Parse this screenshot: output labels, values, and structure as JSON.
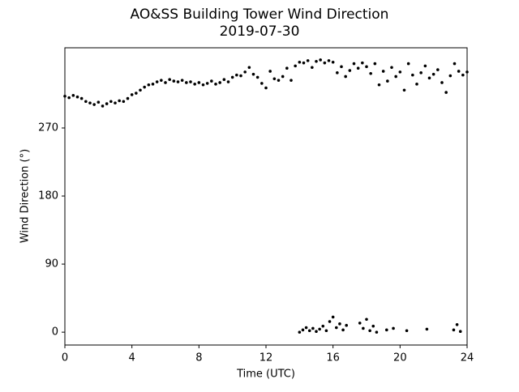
{
  "chart_data": {
    "type": "scatter",
    "title": "AO&SS Building Tower Wind Direction",
    "subtitle": "2019-07-30",
    "xlabel": "Time (UTC)",
    "ylabel": "Wind Direction (°)",
    "color": "#000000",
    "xlim": [
      0,
      24
    ],
    "xticks": [
      0,
      4,
      8,
      12,
      16,
      20,
      24
    ],
    "ylim": [
      -17,
      376
    ],
    "yticks": [
      0,
      90,
      180,
      270
    ],
    "grid": false,
    "x": [
      0,
      0.25,
      0.5,
      0.75,
      1,
      1.25,
      1.5,
      1.75,
      2,
      2.25,
      2.5,
      2.75,
      3,
      3.25,
      3.5,
      3.75,
      4,
      4.25,
      4.5,
      4.75,
      5,
      5.25,
      5.5,
      5.75,
      6,
      6.25,
      6.5,
      6.75,
      7,
      7.25,
      7.5,
      7.75,
      8,
      8.25,
      8.5,
      8.75,
      9,
      9.25,
      9.5,
      9.75,
      10,
      10.25,
      10.5,
      10.75,
      11,
      11.25,
      11.5,
      11.75,
      12,
      12.25,
      12.5,
      12.75,
      13,
      13.25,
      13.5,
      13.75,
      14,
      14.25,
      14.5,
      14.75,
      15,
      15.25,
      15.5,
      15.75,
      16,
      16.25,
      16.5,
      16.75,
      17,
      17.25,
      17.5,
      17.75,
      18,
      18.25,
      18.5,
      18.75,
      19,
      19.25,
      19.5,
      19.75,
      20,
      20.25,
      20.5,
      20.75,
      21,
      21.25,
      21.5,
      21.75,
      22,
      22.25,
      22.5,
      22.75,
      23,
      23.25,
      23.5,
      23.75,
      24,
      14,
      14.2,
      14.4,
      14.6,
      14.8,
      15,
      15.2,
      15.4,
      15.6,
      15.8,
      16,
      16.2,
      16.4,
      16.6,
      16.8,
      17.6,
      17.8,
      18,
      18.2,
      18.4,
      18.6,
      19.2,
      19.6,
      20.4,
      21.6,
      23.2,
      23.4,
      23.6
    ],
    "values": [
      312,
      310,
      313,
      311,
      309,
      305,
      303,
      301,
      304,
      299,
      302,
      305,
      303,
      306,
      305,
      309,
      314,
      316,
      320,
      324,
      327,
      328,
      331,
      333,
      330,
      334,
      332,
      331,
      333,
      330,
      331,
      328,
      330,
      327,
      329,
      332,
      328,
      330,
      334,
      331,
      337,
      340,
      339,
      344,
      350,
      341,
      337,
      329,
      323,
      345,
      335,
      333,
      338,
      349,
      333,
      352,
      357,
      356,
      359,
      350,
      358,
      360,
      356,
      359,
      357,
      343,
      351,
      338,
      346,
      355,
      349,
      356,
      351,
      342,
      355,
      327,
      345,
      332,
      350,
      338,
      344,
      320,
      355,
      340,
      328,
      343,
      352,
      336,
      341,
      347,
      330,
      317,
      339,
      355,
      345,
      340,
      344,
      0,
      3,
      6,
      2,
      5,
      1,
      4,
      8,
      2,
      14,
      20,
      6,
      11,
      3,
      9,
      12,
      5,
      17,
      2,
      8,
      0,
      3,
      5,
      2,
      4,
      3,
      10,
      1
    ]
  }
}
